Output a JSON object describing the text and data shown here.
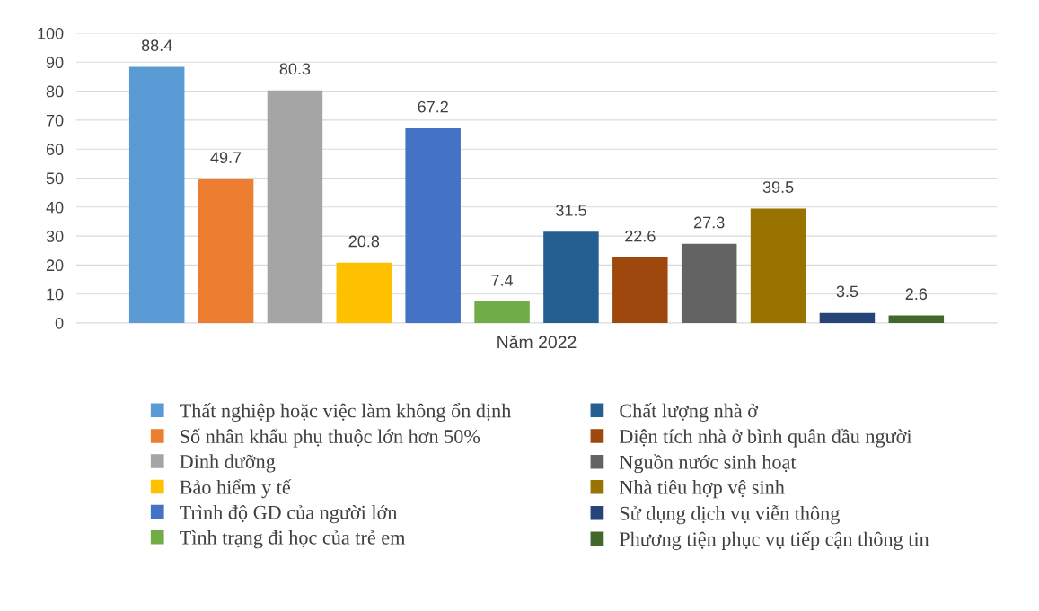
{
  "chart_data": {
    "type": "bar",
    "categories": [
      "Năm 2022"
    ],
    "series": [
      {
        "name": "Thất nghiệp hoặc việc làm không ổn định",
        "color": "#5b9bd5",
        "values": [
          88.4
        ]
      },
      {
        "name": "Số nhân khẩu phụ thuộc lớn hơn 50%",
        "color": "#ed7d31",
        "values": [
          49.7
        ]
      },
      {
        "name": "Dinh dưỡng",
        "color": "#a5a5a5",
        "values": [
          80.3
        ]
      },
      {
        "name": "Bảo hiểm y tế",
        "color": "#ffc000",
        "values": [
          20.8
        ]
      },
      {
        "name": "Trình độ GD của người lớn",
        "color": "#4472c4",
        "values": [
          67.2
        ]
      },
      {
        "name": "Tình trạng đi học của trẻ em",
        "color": "#70ad47",
        "values": [
          7.4
        ]
      },
      {
        "name": "Chất lượng nhà ở",
        "color": "#255e91",
        "values": [
          31.5
        ]
      },
      {
        "name": "Diện tích nhà ở bình quân đầu người",
        "color": "#9e480e",
        "values": [
          22.6
        ]
      },
      {
        "name": "Nguồn nước sinh hoạt",
        "color": "#636363",
        "values": [
          27.3
        ]
      },
      {
        "name": "Nhà tiêu hợp vệ sinh",
        "color": "#997300",
        "values": [
          39.5
        ]
      },
      {
        "name": "Sử dụng dịch vụ viễn thông",
        "color": "#264478",
        "values": [
          3.5
        ]
      },
      {
        "name": "Phương tiện phục vụ tiếp cận thông tin",
        "color": "#43682b",
        "values": [
          2.6
        ]
      }
    ],
    "ylim": [
      0,
      100
    ],
    "yticks": [
      0,
      10,
      20,
      30,
      40,
      50,
      60,
      70,
      80,
      90,
      100
    ],
    "grid": "y",
    "legend": "bottom",
    "data_labels": true
  }
}
